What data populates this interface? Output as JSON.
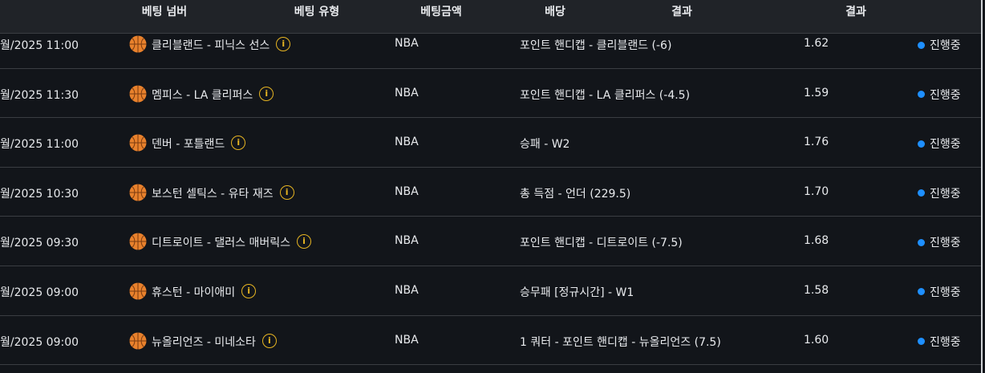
{
  "header": {
    "columns": [
      "베팅 넘버",
      "베팅 유형",
      "베팅금액",
      "배당",
      "결과",
      "결과"
    ]
  },
  "colors": {
    "status_dot": "#1e8fff",
    "info_icon": "#e6b422",
    "ball": "#e8812c"
  },
  "rows": [
    {
      "date": "월/2025 11:00",
      "match": "클리블랜드 - 피닉스 선스",
      "league": "NBA",
      "bet": "포인트 핸디캡 - 클리블랜드 (-6)",
      "odds": "1.62",
      "status": "진행중"
    },
    {
      "date": "월/2025 11:30",
      "match": "멤피스 - LA 클리퍼스",
      "league": "NBA",
      "bet": "포인트 핸디캡 - LA 클리퍼스 (-4.5)",
      "odds": "1.59",
      "status": "진행중"
    },
    {
      "date": "월/2025 11:00",
      "match": "덴버 - 포틀랜드",
      "league": "NBA",
      "bet": "승패 - W2",
      "odds": "1.76",
      "status": "진행중"
    },
    {
      "date": "월/2025 10:30",
      "match": "보스턴 셀틱스 - 유타 재즈",
      "league": "NBA",
      "bet": "총 득점 - 언더 (229.5)",
      "odds": "1.70",
      "status": "진행중"
    },
    {
      "date": "월/2025 09:30",
      "match": "디트로이트 - 댈러스 매버릭스",
      "league": "NBA",
      "bet": "포인트 핸디캡 - 디트로이트 (-7.5)",
      "odds": "1.68",
      "status": "진행중"
    },
    {
      "date": "월/2025 09:00",
      "match": "휴스턴 - 마이애미",
      "league": "NBA",
      "bet": "승무패 [정규시간] - W1",
      "odds": "1.58",
      "status": "진행중"
    },
    {
      "date": "월/2025 09:00",
      "match": "뉴올리언즈 - 미네소타",
      "league": "NBA",
      "bet": "1 쿼터 - 포인트 핸디캡 - 뉴올리언즈 (7.5)",
      "odds": "1.60",
      "status": "진행중"
    }
  ]
}
